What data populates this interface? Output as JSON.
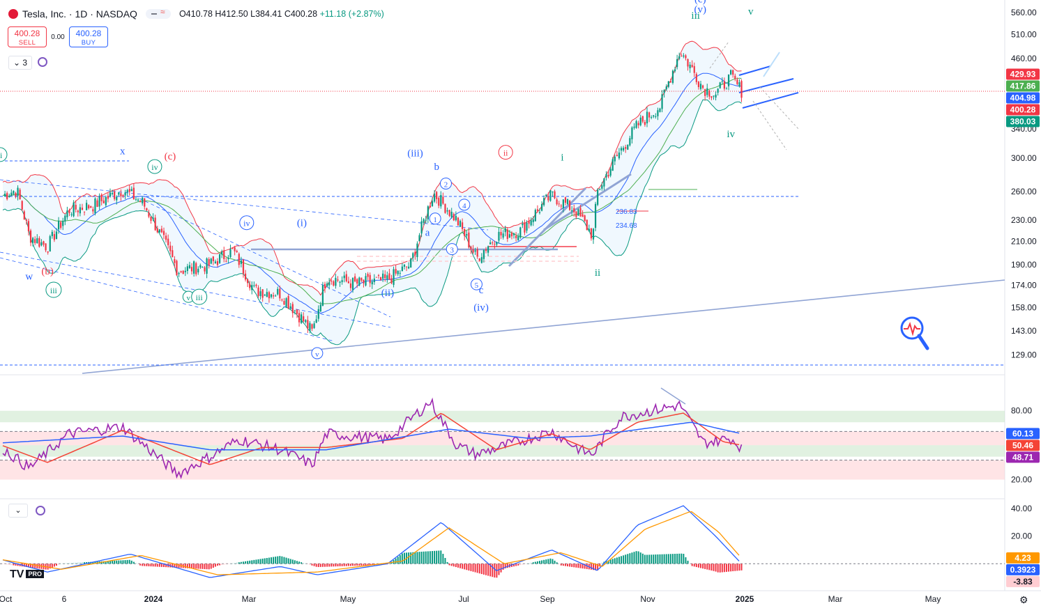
{
  "header": {
    "title": "Tesla, Inc. · 1D · NASDAQ",
    "open": "O410.78",
    "high": "H412.50",
    "low": "L384.41",
    "close": "C400.28",
    "change": "+11.18 (+2.87%)"
  },
  "trade": {
    "sell_price": "400.28",
    "sell_label": "SELL",
    "spread": "0.00",
    "buy_price": "400.28",
    "buy_label": "BUY"
  },
  "legend": {
    "count": "3"
  },
  "branding": {
    "logo": "TV",
    "badge": "PRO"
  },
  "colors": {
    "up": "#089981",
    "down": "#f23645",
    "upper_band": "#f23645",
    "lower_band": "#089981",
    "basis": "#2962ff",
    "ma": "#4caf50",
    "rsi": "#9c27b0",
    "rsi_ma": "#f44336",
    "rsi_slow": "#2962ff",
    "macd": "#2962ff",
    "signal": "#ff9800",
    "wave_blue": "#2962ff",
    "wave_red": "#f23645",
    "wave_green": "#089981"
  },
  "icons": {
    "settings": "gear-icon",
    "legend_toggle": "chevron-down-icon",
    "sync": "sync-icon",
    "search": "magnifier-pulse-icon"
  },
  "chart_data": [
    {
      "type": "candlestick",
      "pane": "price",
      "y_ticks": [
        "560.00",
        "510.00",
        "460.00",
        "429.93",
        "417.86",
        "404.98",
        "400.28",
        "380.03",
        "340.00",
        "300.00",
        "260.00",
        "230.00",
        "210.00",
        "190.00",
        "174.00",
        "158.00",
        "143.00",
        "129.00"
      ],
      "ylim": [
        125,
        565
      ],
      "log_scale": true,
      "x_ticks": [
        "Oct",
        "6",
        "2024",
        "Mar",
        "May",
        "Jul",
        "Sep",
        "Nov",
        "2025",
        "Mar",
        "May"
      ],
      "price_labels": [
        {
          "value": "429.93",
          "color": "#f23645"
        },
        {
          "value": "417.86",
          "color": "#4caf50"
        },
        {
          "value": "404.98",
          "color": "#2962ff"
        },
        {
          "value": "400.28",
          "color": "#f23645"
        },
        {
          "value": "380.03",
          "color": "#089981"
        }
      ],
      "level_labels": [
        "236.83",
        "234.68"
      ],
      "path": [
        [
          "2023-10-02",
          255
        ],
        [
          "2023-10-12",
          262
        ],
        [
          "2023-10-20",
          215
        ],
        [
          "2023-11-01",
          205
        ],
        [
          "2023-11-15",
          240
        ],
        [
          "2023-12-01",
          245
        ],
        [
          "2023-12-20",
          262
        ],
        [
          "2024-01-02",
          248
        ],
        [
          "2024-01-25",
          185
        ],
        [
          "2024-02-15",
          190
        ],
        [
          "2024-03-01",
          202
        ],
        [
          "2024-03-15",
          170
        ],
        [
          "2024-04-01",
          168
        ],
        [
          "2024-04-22",
          142
        ],
        [
          "2024-05-01",
          180
        ],
        [
          "2024-05-20",
          175
        ],
        [
          "2024-06-10",
          178
        ],
        [
          "2024-06-25",
          190
        ],
        [
          "2024-07-10",
          258
        ],
        [
          "2024-07-25",
          230
        ],
        [
          "2024-08-07",
          195
        ],
        [
          "2024-08-20",
          215
        ],
        [
          "2024-09-05",
          220
        ],
        [
          "2024-09-25",
          256
        ],
        [
          "2024-10-10",
          240
        ],
        [
          "2024-10-22",
          215
        ],
        [
          "2024-10-25",
          260
        ],
        [
          "2024-11-06",
          300
        ],
        [
          "2024-11-20",
          345
        ],
        [
          "2024-12-05",
          375
        ],
        [
          "2024-12-18",
          475
        ],
        [
          "2025-01-02",
          405
        ],
        [
          "2025-01-10",
          395
        ],
        [
          "2025-01-20",
          425
        ],
        [
          "2025-01-27",
          400
        ]
      ],
      "annotations": [
        {
          "text": "ii",
          "date": "2023-10-01",
          "price": 300,
          "color": "#089981",
          "circled": true
        },
        {
          "text": "w",
          "date": "2023-10-20",
          "price": 178,
          "color": "#2962ff",
          "circled": false
        },
        {
          "text": "(b)",
          "date": "2023-11-01",
          "price": 182,
          "color": "#f23645",
          "circled": false
        },
        {
          "text": "iii",
          "date": "2023-11-05",
          "price": 168,
          "color": "#089981",
          "circled": true
        },
        {
          "text": "x",
          "date": "2023-12-20",
          "price": 305,
          "color": "#2962ff",
          "circled": false
        },
        {
          "text": "iv",
          "date": "2024-01-10",
          "price": 285,
          "color": "#089981",
          "circled": true
        },
        {
          "text": "(c)",
          "date": "2024-01-20",
          "price": 298,
          "color": "#f23645",
          "circled": false
        },
        {
          "text": "v",
          "date": "2024-02-01",
          "price": 163,
          "color": "#089981",
          "circled": true
        },
        {
          "text": "iii",
          "date": "2024-02-08",
          "price": 163,
          "color": "#089981",
          "circled": true
        },
        {
          "text": "iv",
          "date": "2024-03-10",
          "price": 224,
          "color": "#2962ff",
          "circled": true
        },
        {
          "text": "(i)",
          "date": "2024-04-15",
          "price": 224,
          "color": "#2962ff",
          "circled": false
        },
        {
          "text": "v",
          "date": "2024-04-25",
          "price": 128,
          "color": "#2962ff",
          "circled": true
        },
        {
          "text": "(ii)",
          "date": "2024-06-10",
          "price": 166,
          "color": "#2962ff",
          "circled": false
        },
        {
          "text": "(iii)",
          "date": "2024-06-28",
          "price": 302,
          "color": "#2962ff",
          "circled": false
        },
        {
          "text": "b",
          "date": "2024-07-12",
          "price": 285,
          "color": "#2962ff",
          "circled": false
        },
        {
          "text": "2",
          "date": "2024-07-18",
          "price": 265,
          "color": "#2962ff",
          "circled": true
        },
        {
          "text": "4",
          "date": "2024-07-30",
          "price": 242,
          "color": "#2962ff",
          "circled": true
        },
        {
          "text": "1",
          "date": "2024-07-11",
          "price": 228,
          "color": "#2962ff",
          "circled": true
        },
        {
          "text": "a",
          "date": "2024-07-06",
          "price": 215,
          "color": "#2962ff",
          "circled": false
        },
        {
          "text": "3",
          "date": "2024-07-22",
          "price": 200,
          "color": "#2962ff",
          "circled": true
        },
        {
          "text": "5",
          "date": "2024-08-07",
          "price": 172,
          "color": "#2962ff",
          "circled": true
        },
        {
          "text": "c",
          "date": "2024-08-10",
          "price": 168,
          "color": "#2962ff",
          "circled": false
        },
        {
          "text": "(iv)",
          "date": "2024-08-10",
          "price": 156,
          "color": "#2962ff",
          "circled": false
        },
        {
          "text": "ii",
          "date": "2024-08-26",
          "price": 303,
          "color": "#f23645",
          "circled": true
        },
        {
          "text": "i",
          "date": "2024-10-02",
          "price": 297,
          "color": "#089981",
          "circled": false
        },
        {
          "text": "ii",
          "date": "2024-10-25",
          "price": 181,
          "color": "#089981",
          "circled": false
        },
        {
          "text": "iii",
          "date": "2024-12-28",
          "price": 545,
          "color": "#089981",
          "circled": false
        },
        {
          "text": "(c)",
          "date": "2024-12-31",
          "price": 585,
          "color": "#2962ff",
          "circled": false
        },
        {
          "text": "(v)",
          "date": "2024-12-31",
          "price": 560,
          "color": "#2962ff",
          "circled": false
        },
        {
          "text": "iv",
          "date": "2025-01-20",
          "price": 328,
          "color": "#089981",
          "circled": false
        },
        {
          "text": "v",
          "date": "2025-02-02",
          "price": 555,
          "color": "#089981",
          "circled": false
        }
      ]
    },
    {
      "type": "line",
      "pane": "rsi",
      "y_ticks": [
        "80.00",
        "20.00"
      ],
      "ylim": [
        10,
        95
      ],
      "value_labels": [
        {
          "value": "60.13",
          "color": "#2962ff"
        },
        {
          "value": "50.46",
          "color": "#f44336"
        },
        {
          "value": "48.71",
          "color": "#9c27b0"
        }
      ],
      "zones": [
        {
          "from": 70,
          "to": 80,
          "color": "#c8e6c9"
        },
        {
          "from": 50,
          "to": 62,
          "color": "#ffcdd2"
        },
        {
          "from": 40,
          "to": 50,
          "color": "#c8e6c9"
        },
        {
          "from": 20,
          "to": 37,
          "color": "#ffcdd2"
        }
      ],
      "series": [
        {
          "values": [
            [
              "2023-10-02",
              48
            ],
            [
              "2023-10-20",
              30
            ],
            [
              "2023-11-15",
              60
            ],
            [
              "2023-12-20",
              66
            ],
            [
              "2024-01-25",
              25
            ],
            [
              "2024-02-15",
              40
            ],
            [
              "2024-03-05",
              55
            ],
            [
              "2024-04-01",
              46
            ],
            [
              "2024-04-22",
              33
            ],
            [
              "2024-05-01",
              60
            ],
            [
              "2024-06-10",
              55
            ],
            [
              "2024-07-08",
              88
            ],
            [
              "2024-07-25",
              50
            ],
            [
              "2024-08-07",
              42
            ],
            [
              "2024-09-25",
              62
            ],
            [
              "2024-10-15",
              45
            ],
            [
              "2024-10-22",
              42
            ],
            [
              "2024-11-01",
              62
            ],
            [
              "2024-11-10",
              75
            ],
            [
              "2024-12-18",
              85
            ],
            [
              "2025-01-02",
              52
            ],
            [
              "2025-01-20",
              56
            ],
            [
              "2025-01-27",
              48
            ]
          ]
        },
        {
          "values": [
            [
              "2023-10-02",
              50
            ],
            [
              "2023-11-01",
              35
            ],
            [
              "2023-12-20",
              63
            ],
            [
              "2024-02-15",
              33
            ],
            [
              "2024-03-20",
              48
            ],
            [
              "2024-05-01",
              48
            ],
            [
              "2024-06-20",
              56
            ],
            [
              "2024-07-15",
              78
            ],
            [
              "2024-08-20",
              46
            ],
            [
              "2024-09-25",
              60
            ],
            [
              "2024-10-20",
              46
            ],
            [
              "2024-11-20",
              70
            ],
            [
              "2024-12-20",
              78
            ],
            [
              "2025-01-15",
              53
            ],
            [
              "2025-01-27",
              50
            ]
          ]
        },
        {
          "values": [
            [
              "2023-10-02",
              52
            ],
            [
              "2023-12-20",
              58
            ],
            [
              "2024-02-15",
              46
            ],
            [
              "2024-05-01",
              46
            ],
            [
              "2024-07-20",
              64
            ],
            [
              "2024-09-10",
              56
            ],
            [
              "2024-10-20",
              58
            ],
            [
              "2024-12-25",
              70
            ],
            [
              "2025-01-27",
              60
            ]
          ]
        }
      ]
    },
    {
      "type": "line",
      "pane": "macd",
      "y_ticks": [
        "40.00",
        "20.00"
      ],
      "ylim": [
        -18,
        45
      ],
      "value_labels": [
        {
          "value": "4.23",
          "color": "#ff9800"
        },
        {
          "value": "0.3923",
          "color": "#2962ff"
        },
        {
          "value": "-3.83",
          "color": "#f23645"
        }
      ],
      "series": [
        {
          "values": [
            [
              "2023-10-02",
              3
            ],
            [
              "2023-11-01",
              -6
            ],
            [
              "2023-12-25",
              7
            ],
            [
              "2024-02-15",
              -10
            ],
            [
              "2024-04-01",
              -2
            ],
            [
              "2024-04-25",
              -8
            ],
            [
              "2024-06-10",
              0
            ],
            [
              "2024-07-15",
              30
            ],
            [
              "2024-08-20",
              -5
            ],
            [
              "2024-09-25",
              10
            ],
            [
              "2024-10-25",
              -5
            ],
            [
              "2024-11-20",
              28
            ],
            [
              "2024-12-20",
              42
            ],
            [
              "2025-01-10",
              20
            ],
            [
              "2025-01-27",
              0
            ]
          ]
        },
        {
          "values": [
            [
              "2023-10-02",
              3
            ],
            [
              "2023-11-10",
              -4
            ],
            [
              "2024-01-01",
              6
            ],
            [
              "2024-02-20",
              -8
            ],
            [
              "2024-04-25",
              -6
            ],
            [
              "2024-06-20",
              2
            ],
            [
              "2024-07-20",
              26
            ],
            [
              "2024-08-25",
              0
            ],
            [
              "2024-10-01",
              8
            ],
            [
              "2024-10-28",
              -2
            ],
            [
              "2024-11-25",
              25
            ],
            [
              "2024-12-25",
              38
            ],
            [
              "2025-01-12",
              23
            ],
            [
              "2025-01-27",
              4
            ]
          ]
        }
      ]
    }
  ]
}
